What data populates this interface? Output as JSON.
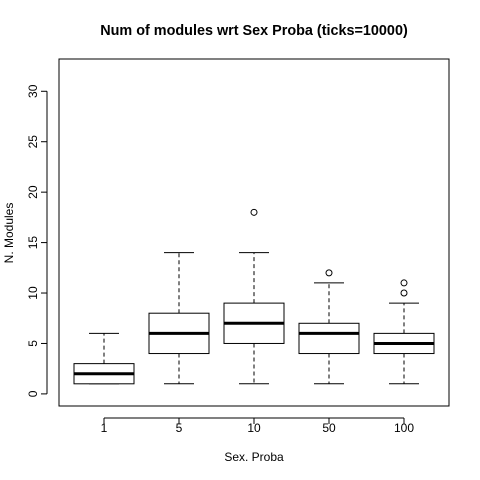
{
  "chart_data": {
    "type": "boxplot",
    "title": "Num of modules wrt Sex Proba (ticks=10000)",
    "xlabel": "Sex. Proba",
    "ylabel": "N. Modules",
    "categories": [
      "1",
      "5",
      "10",
      "50",
      "100"
    ],
    "ylim": [
      -1.2,
      33.2
    ],
    "yticks": [
      0,
      5,
      10,
      15,
      20,
      25,
      30
    ],
    "grid": false,
    "boxes": [
      {
        "category": "1",
        "whisker_low": 1,
        "q1": 1,
        "median": 2,
        "q3": 3,
        "whisker_high": 6,
        "outliers": []
      },
      {
        "category": "5",
        "whisker_low": 1,
        "q1": 4,
        "median": 6,
        "q3": 8,
        "whisker_high": 14,
        "outliers": []
      },
      {
        "category": "10",
        "whisker_low": 1,
        "q1": 5,
        "median": 7,
        "q3": 9,
        "whisker_high": 14,
        "outliers": [
          18
        ]
      },
      {
        "category": "50",
        "whisker_low": 1,
        "q1": 4,
        "median": 6,
        "q3": 7,
        "whisker_high": 11,
        "outliers": [
          12
        ]
      },
      {
        "category": "100",
        "whisker_low": 1,
        "q1": 4,
        "median": 5,
        "q3": 6,
        "whisker_high": 9,
        "outliers": [
          10,
          11
        ]
      }
    ]
  }
}
